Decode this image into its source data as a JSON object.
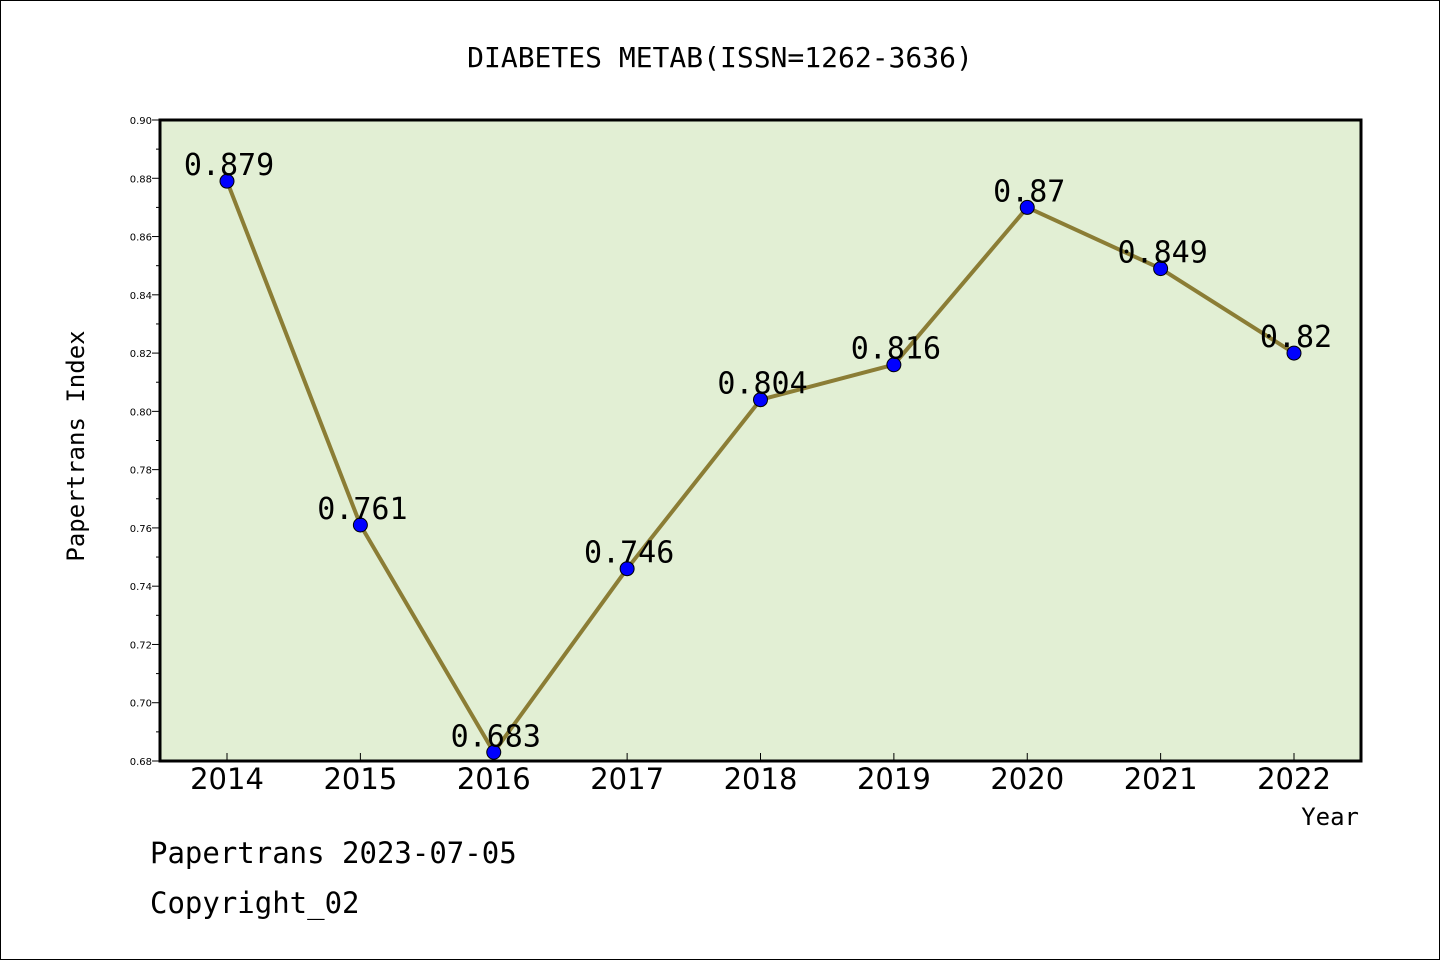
{
  "colors": {
    "plot_background": "#e2efd4",
    "line": "#8b7d35",
    "marker": "#0000ff",
    "axis": "#000000"
  },
  "chart_data": {
    "type": "line",
    "title": "DIABETES METAB(ISSN=1262-3636)",
    "xlabel": "Year",
    "ylabel": "Papertrans Index",
    "categories": [
      "2014",
      "2015",
      "2016",
      "2017",
      "2018",
      "2019",
      "2020",
      "2021",
      "2022"
    ],
    "values": [
      0.879,
      0.761,
      0.683,
      0.746,
      0.804,
      0.816,
      0.87,
      0.849,
      0.82
    ],
    "data_labels": [
      "0.879",
      "0.761",
      "0.683",
      "0.746",
      "0.804",
      "0.816",
      "0.87",
      "0.849",
      "0.82"
    ],
    "ylim": [
      0.68,
      0.9
    ],
    "yticks": [
      "0.68",
      "0.70",
      "0.72",
      "0.74",
      "0.76",
      "0.78",
      "0.80",
      "0.82",
      "0.84",
      "0.86",
      "0.88",
      "0.90"
    ],
    "grid": false,
    "legend": "none"
  },
  "footer": {
    "date_line": "Papertrans 2023-07-05",
    "copyright_line": "Copyright_02"
  }
}
